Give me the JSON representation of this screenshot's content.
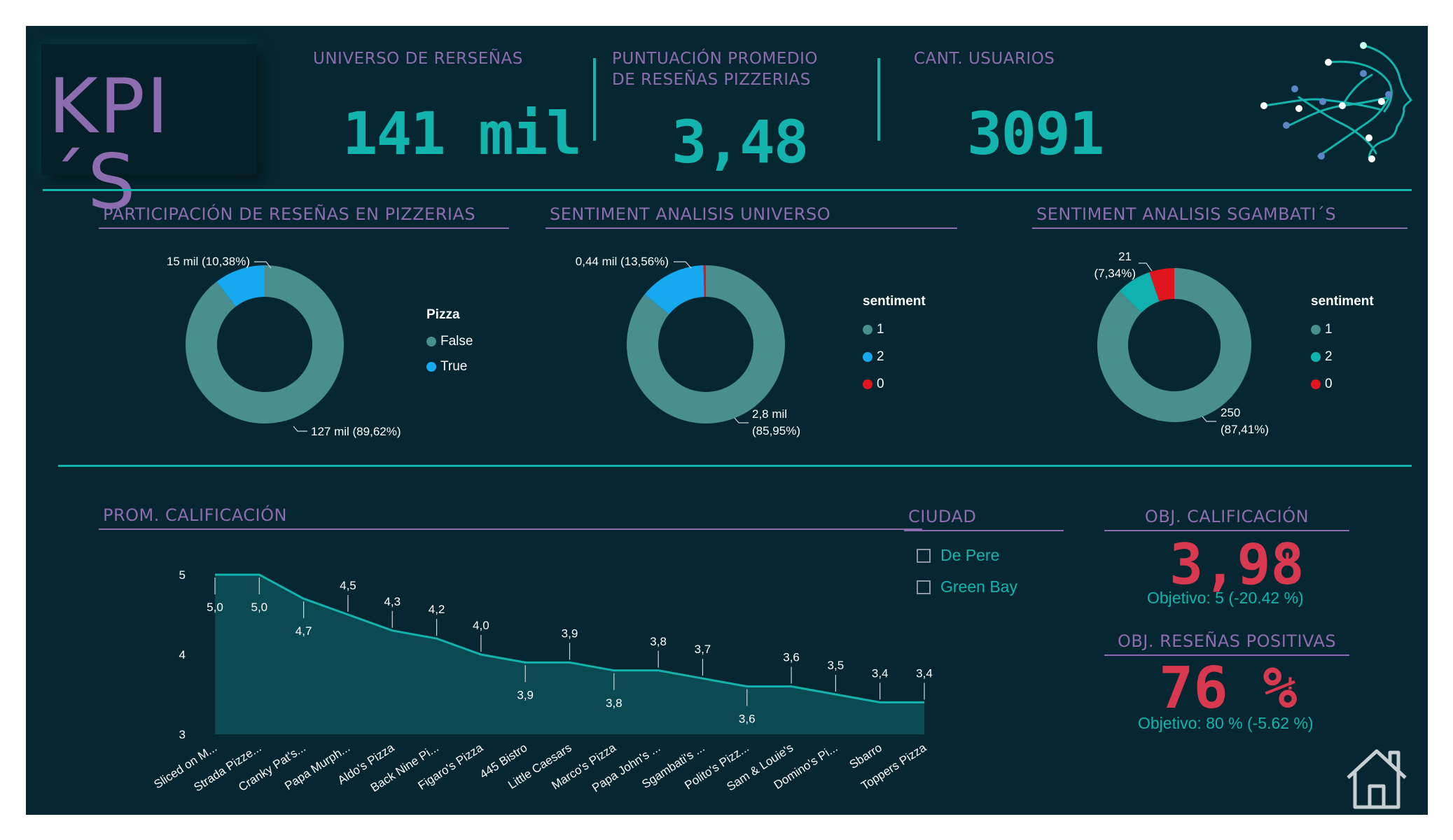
{
  "header": {
    "title": "KPI´S",
    "kpis": [
      {
        "label": "UNIVERSO DE RERSEÑAS",
        "value": "141 mil"
      },
      {
        "label_line1": "PUNTUACIÓN PROMEDIO",
        "label_line2": "DE RESEÑAS PIZZERIAS",
        "value": "3,48"
      },
      {
        "label": "CANT. USUARIOS",
        "value": "3091"
      }
    ],
    "logo_icon": "ai-head-network-icon"
  },
  "donut1": {
    "title": "PARTICIPACIÓN DE RESEÑAS EN PIZZERIAS",
    "legend_title": "Pizza",
    "legend": [
      {
        "label": "False",
        "color": "#4a8f8f"
      },
      {
        "label": "True",
        "color": "#17a9f0"
      }
    ],
    "label_small": "15 mil (10,38%)",
    "label_big": "127 mil (89,62%)"
  },
  "donut2": {
    "title": "SENTIMENT ANALISIS UNIVERSO",
    "legend_title": "sentiment",
    "legend": [
      {
        "label": "1",
        "color": "#4a8f8f"
      },
      {
        "label": "2",
        "color": "#17a9f0"
      },
      {
        "label": "0",
        "color": "#e0161e"
      }
    ],
    "label_small": "0,44 mil (13,56%)",
    "label_big_line1": "2,8 mil",
    "label_big_line2": "(85,95%)"
  },
  "donut3": {
    "title": "SENTIMENT ANALISIS SGAMBATI´S",
    "legend_title": "sentiment",
    "legend": [
      {
        "label": "1",
        "color": "#4a8f8f"
      },
      {
        "label": "2",
        "color": "#0fb2b0"
      },
      {
        "label": "0",
        "color": "#e0161e"
      }
    ],
    "label_small_line1": "21",
    "label_small_line2": "(7,34%)",
    "label_big_line1": "250",
    "label_big_line2": "(87,41%)"
  },
  "chart_data": [
    {
      "type": "pie",
      "title": "PARTICIPACIÓN DE RESEÑAS EN PIZZERIAS",
      "categories": [
        "False",
        "True"
      ],
      "values": [
        89.62,
        10.38
      ],
      "labels": [
        "127 mil (89,62%)",
        "15 mil (10,38%)"
      ],
      "colors": [
        "#4a8f8f",
        "#17a9f0"
      ],
      "legend": "right"
    },
    {
      "type": "pie",
      "title": "SENTIMENT ANALISIS UNIVERSO",
      "categories": [
        "1",
        "2",
        "0"
      ],
      "values": [
        85.95,
        13.56,
        0.49
      ],
      "labels": [
        "2,8 mil (85,95%)",
        "0,44 mil (13,56%)",
        ""
      ],
      "colors": [
        "#4a8f8f",
        "#17a9f0",
        "#e0161e"
      ],
      "legend": "right"
    },
    {
      "type": "pie",
      "title": "SENTIMENT ANALISIS SGAMBATI´S",
      "categories": [
        "1",
        "2",
        "0"
      ],
      "values": [
        87.41,
        7.34,
        5.25
      ],
      "labels": [
        "250 (87,41%)",
        "21 (7,34%)",
        ""
      ],
      "colors": [
        "#4a8f8f",
        "#0fb2b0",
        "#e0161e"
      ],
      "legend": "right"
    },
    {
      "type": "area",
      "title": "PROM. CALIFICACIÓN",
      "categories": [
        "Sliced on M...",
        "Strada Pizze...",
        "Cranky Pat's...",
        "Papa Murph...",
        "Aldo's Pizza",
        "Back Nine Pi...",
        "Figaro's Pizza",
        "445 Bistro",
        "Little Caesars",
        "Marco's Pizza",
        "Papa John's ...",
        "Sgambati's ...",
        "Polito's Pizz...",
        "Sam & Louie's",
        "Domino's Pi...",
        "Sbarro",
        "Toppers Pizza"
      ],
      "values": [
        5.0,
        5.0,
        4.7,
        4.5,
        4.3,
        4.2,
        4.0,
        3.9,
        3.9,
        3.8,
        3.8,
        3.7,
        3.6,
        3.6,
        3.5,
        3.4,
        3.4
      ],
      "data_labels": [
        "5,0",
        "5,0",
        "4,7",
        "4,5",
        "4,3",
        "4,2",
        "4,0",
        "3,9",
        "3,9",
        "3,8",
        "3,8",
        "3,7",
        "3,6",
        "3,6",
        "3,5",
        "3,4",
        "3,4"
      ],
      "label_above": [
        false,
        false,
        false,
        true,
        true,
        true,
        true,
        false,
        true,
        false,
        true,
        true,
        false,
        true,
        true,
        true,
        true
      ],
      "yticks": [
        "5",
        "4",
        "3"
      ],
      "ylim": [
        3,
        5
      ],
      "color": "#12b4ad"
    }
  ],
  "area_chart": {
    "title": "PROM. CALIFICACIÓN"
  },
  "city_filter": {
    "title": "CIUDAD",
    "options": [
      "De Pere",
      "Green Bay"
    ]
  },
  "obj_calificacion": {
    "title": "OBJ. CALIFICACIÓN",
    "value": "3,98",
    "alert": "!",
    "objective": "Objetivo: 5 (-20.42 %)"
  },
  "obj_resenas": {
    "title": "OBJ. RESEÑAS POSITIVAS",
    "value": "76 %",
    "alert": "!",
    "objective": "Objetivo: 80 % (-5.62 %)"
  },
  "home_icon": "home-icon"
}
